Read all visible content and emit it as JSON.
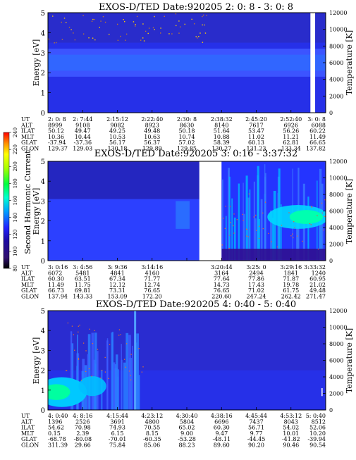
{
  "colorbar": {
    "label": "Second Harmonic Current",
    "ticks": [
      "80",
      "100",
      "120",
      "140",
      "160",
      "180",
      "200",
      "220",
      "240"
    ]
  },
  "panels": [
    {
      "title": "EXOS-D/TED   Date:920205  2: 0: 8 - 3: 0: 8",
      "ylabel": "Energy [eV]",
      "y2label": "Temperature [K]",
      "gap": [
        0.945,
        0.962
      ],
      "bands": [
        {
          "row": "UT",
          "values": [
            "2: 0: 8",
            "2: 7:44",
            "2:15:12",
            "2:22:40",
            "2:30: 8",
            "2:38:32",
            "2:45:20",
            "2:52:40",
            "3: 0: 8"
          ]
        },
        {
          "row": "ALT",
          "values": [
            "8999",
            "9108",
            "9082",
            "8923",
            "8630",
            "8140",
            "7617",
            "6926",
            "6088"
          ]
        },
        {
          "row": "ILAT",
          "values": [
            "50.12",
            "49.47",
            "49.25",
            "49.48",
            "50.18",
            "51.64",
            "53.47",
            "56.26",
            "60.22"
          ]
        },
        {
          "row": "MLT",
          "values": [
            "10.36",
            "10.44",
            "10.53",
            "10.63",
            "10.74",
            "10.88",
            "11.02",
            "11.21",
            "11.49"
          ]
        },
        {
          "row": "GLAT",
          "values": [
            "-37.94",
            "-37.36",
            "56.17",
            "56.37",
            "57.02",
            "58.39",
            "60.13",
            "62.81",
            "66.65"
          ]
        },
        {
          "row": "GLON",
          "values": [
            "129.37",
            "129.03",
            "130.18",
            "129.89",
            "129.85",
            "130.27",
            "131.23",
            "133.34",
            "137.82"
          ]
        }
      ]
    },
    {
      "title": "EXOS-D/TED   Date:920205  3: 0:16 - 3:37:32",
      "ylabel": "Energy [eV]",
      "y2label": "Temperature [K]",
      "gap": [
        0.545,
        0.625
      ],
      "bands": [
        {
          "row": "UT",
          "values": [
            "3: 0:16",
            "3: 4:56",
            "3: 9:36",
            "3:14:16",
            "",
            "3:20:44",
            "3:25: 0",
            "3:29:16",
            "3:33:32"
          ]
        },
        {
          "row": "ALT",
          "values": [
            "6072",
            "5481",
            "4841",
            "4160",
            "",
            "3164",
            "2494",
            "1841",
            "1240"
          ]
        },
        {
          "row": "ILAT",
          "values": [
            "60.30",
            "63.51",
            "67.34",
            "71.77",
            "",
            "77.64",
            "77.86",
            "71.87",
            "60.95"
          ]
        },
        {
          "row": "MLT",
          "values": [
            "11.49",
            "11.75",
            "12.12",
            "12.74",
            "",
            "14.73",
            "17.43",
            "19.78",
            "21.02"
          ]
        },
        {
          "row": "GLAT",
          "values": [
            "66.73",
            "69.81",
            "73.31",
            "76.65",
            "",
            "76.65",
            "71.02",
            "61.75",
            "49.48"
          ]
        },
        {
          "row": "GLON",
          "values": [
            "137.94",
            "143.33",
            "153.09",
            "172.20",
            "",
            "220.60",
            "247.24",
            "262.42",
            "271.47"
          ]
        }
      ]
    },
    {
      "title": "EXOS-D/TED   Date:920205  4: 0:40 - 5: 0:40",
      "ylabel": "Energy [eV]",
      "y2label": "Temperature [K]",
      "gap": null,
      "bands": [
        {
          "row": "UT",
          "values": [
            "4: 0:40",
            "4: 8:16",
            "4:15:44",
            "4:23:12",
            "4:30:40",
            "4:38:16",
            "4:45:44",
            "4:53:12",
            "5: 0:40"
          ]
        },
        {
          "row": "ALT",
          "values": [
            "1396",
            "2526",
            "3691",
            "4800",
            "5804",
            "6696",
            "7437",
            "8043",
            "8512"
          ]
        },
        {
          "row": "ILAT",
          "values": [
            "54.62",
            "70.98",
            "74.93",
            "70.55",
            "65.02",
            "60.30",
            "56.71",
            "54.02",
            "52.06"
          ]
        },
        {
          "row": "MLT",
          "values": [
            "0.15",
            "2.39",
            "6.15",
            "8.15",
            "9.00",
            "9.47",
            "9.77",
            "10.01",
            "10.20"
          ]
        },
        {
          "row": "GLAT",
          "values": [
            "-68.78",
            "-80.08",
            "-70.01",
            "-60.35",
            "-53.28",
            "-48.11",
            "-44.45",
            "-41.82",
            "-39.94"
          ]
        },
        {
          "row": "GLON",
          "values": [
            "311.39",
            "29.66",
            "75.84",
            "85.06",
            "88.23",
            "89.60",
            "90.20",
            "90.46",
            "90.54"
          ]
        }
      ]
    }
  ],
  "chart_data": {
    "type": "heatmap",
    "title": "EXOS-D/TED",
    "date": "920205",
    "ylabel": "Energy [eV]",
    "y2label": "Temperature [K]",
    "ylim": [
      0,
      5
    ],
    "y2lim": [
      0,
      12000
    ],
    "yticks": [
      "0",
      "1",
      "2",
      "3",
      "4",
      "5"
    ],
    "y2ticks": [
      "0",
      "2000",
      "4000",
      "6000",
      "8000",
      "10000",
      "12000"
    ],
    "colorbar_label": "Second Harmonic Current",
    "colorbar_range": [
      80,
      240
    ],
    "colors": [
      "#000000",
      "#1e0aa0",
      "#2222ff",
      "#2a5cff",
      "#00ccff",
      "#00ffb4",
      "#00ff00",
      "#aaff00",
      "#ffff00",
      "#ff8800",
      "#ff0000"
    ]
  }
}
